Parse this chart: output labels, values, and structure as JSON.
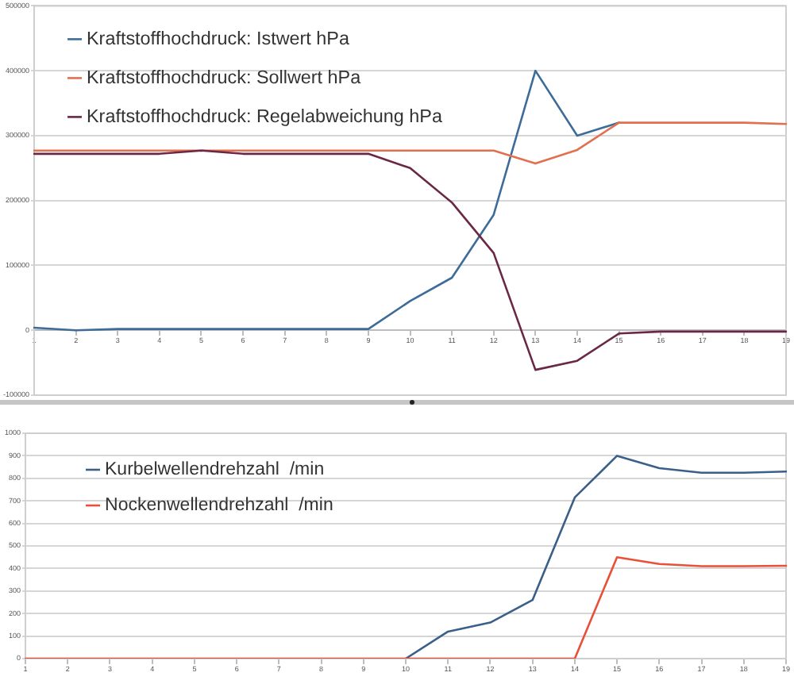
{
  "chart_data": [
    {
      "type": "line",
      "categories": [
        "1",
        "2",
        "3",
        "4",
        "5",
        "6",
        "7",
        "8",
        "9",
        "10",
        "11",
        "12",
        "13",
        "14",
        "15",
        "16",
        "17",
        "18",
        "19"
      ],
      "series": [
        {
          "name": "Kraftstoffhochdruck: Istwert hPa",
          "color": "#3e6c98",
          "values": [
            4000,
            0,
            2000,
            2000,
            2000,
            2000,
            2000,
            2000,
            2000,
            45000,
            81000,
            178000,
            400000,
            300000,
            320000,
            null,
            null,
            null,
            null
          ]
        },
        {
          "name": "Kraftstoffhochdruck: Sollwert hPa",
          "color": "#e2704e",
          "values": [
            277000,
            277000,
            277000,
            277000,
            277000,
            277000,
            277000,
            277000,
            277000,
            277000,
            277000,
            277000,
            257000,
            278000,
            320000,
            320000,
            320000,
            320000,
            318000
          ]
        },
        {
          "name": "Kraftstoffhochdruck: Regelabweichung hPa",
          "color": "#6a2846",
          "values": [
            272000,
            272000,
            272000,
            272000,
            277000,
            272000,
            272000,
            272000,
            272000,
            250000,
            197000,
            119000,
            -61000,
            -47000,
            -5000,
            -2000,
            -2000,
            -2000,
            -2000
          ]
        }
      ],
      "ylim": [
        -100000,
        500000
      ],
      "yticks": [
        -100000,
        0,
        100000,
        200000,
        300000,
        400000,
        500000
      ],
      "grid": "y",
      "legend": "top left",
      "marker": "none",
      "line_style": "solid"
    },
    {
      "type": "line",
      "categories": [
        "1",
        "2",
        "3",
        "4",
        "5",
        "6",
        "7",
        "8",
        "9",
        "10",
        "11",
        "12",
        "13",
        "14",
        "15",
        "16",
        "17",
        "18",
        "19"
      ],
      "series": [
        {
          "name": "Kurbelwellendrehzahl  /min",
          "color": "#3a5f88",
          "values": [
            null,
            null,
            null,
            null,
            null,
            null,
            null,
            null,
            null,
            0,
            120,
            160,
            260,
            715,
            900,
            845,
            825,
            825,
            830
          ]
        },
        {
          "name": "Nockenwellendrehzahl  /min",
          "color": "#e8503a",
          "values": [
            0,
            0,
            0,
            0,
            0,
            0,
            0,
            0,
            0,
            0,
            0,
            0,
            0,
            0,
            450,
            420,
            410,
            410,
            412
          ]
        }
      ],
      "ylim": [
        0,
        1000
      ],
      "yticks": [
        0,
        100,
        200,
        300,
        400,
        500,
        600,
        700,
        800,
        900,
        1000
      ],
      "grid": "y",
      "legend": "top left",
      "marker": "none",
      "line_style": "solid"
    }
  ]
}
